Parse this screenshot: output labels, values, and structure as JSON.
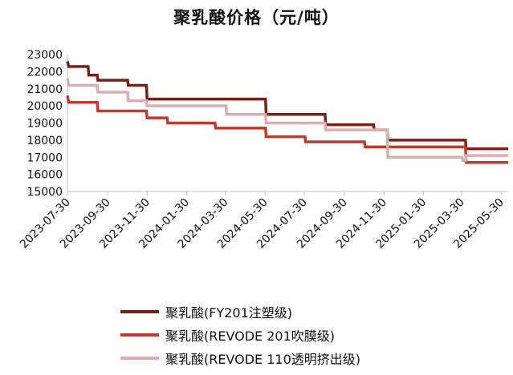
{
  "chart_data": {
    "type": "line",
    "title": "聚乳酸价格（元/吨）",
    "xlabel": "",
    "ylabel": "",
    "ylim": [
      15000,
      23000
    ],
    "yticks": [
      "23000",
      "22000",
      "21000",
      "20000",
      "19000",
      "18000",
      "17000",
      "16000",
      "15000"
    ],
    "xticks": [
      "2023-07-30",
      "2023-09-30",
      "2023-11-30",
      "2024-01-30",
      "2024-03-30",
      "2024-05-30",
      "2024-07-30",
      "2024-09-30",
      "2024-11-30",
      "2025-01-30",
      "2025-03-30",
      "2025-05-30"
    ],
    "xrange": [
      "2023-07-30",
      "2025-06-10"
    ],
    "grid": false,
    "legend_position": "bottom",
    "series": [
      {
        "name": "聚乳酸(FY201注塑级)",
        "color": "#7a1f16",
        "points": [
          [
            "2023-07-30",
            22600
          ],
          [
            "2023-08-01",
            22300
          ],
          [
            "2023-08-31",
            22300
          ],
          [
            "2023-09-01",
            21800
          ],
          [
            "2023-09-14",
            21800
          ],
          [
            "2023-09-15",
            21500
          ],
          [
            "2023-10-31",
            21500
          ],
          [
            "2023-11-01",
            21200
          ],
          [
            "2023-11-29",
            21200
          ],
          [
            "2023-11-30",
            20400
          ],
          [
            "2024-05-31",
            20400
          ],
          [
            "2024-06-01",
            19500
          ],
          [
            "2024-08-31",
            19500
          ],
          [
            "2024-09-01",
            18900
          ],
          [
            "2024-11-14",
            18900
          ],
          [
            "2024-11-15",
            18600
          ],
          [
            "2024-12-05",
            18600
          ],
          [
            "2024-12-06",
            18000
          ],
          [
            "2025-04-05",
            18000
          ],
          [
            "2025-04-06",
            17500
          ],
          [
            "2025-06-10",
            17500
          ]
        ]
      },
      {
        "name": "聚乳酸(REVODE 201吹膜级)",
        "color": "#c0392b",
        "points": [
          [
            "2023-07-30",
            20600
          ],
          [
            "2023-08-01",
            20200
          ],
          [
            "2023-09-14",
            20200
          ],
          [
            "2023-09-15",
            19700
          ],
          [
            "2023-11-29",
            19700
          ],
          [
            "2023-11-30",
            19300
          ],
          [
            "2023-12-31",
            19300
          ],
          [
            "2024-01-01",
            19000
          ],
          [
            "2024-03-14",
            19000
          ],
          [
            "2024-03-15",
            18700
          ],
          [
            "2024-05-31",
            18700
          ],
          [
            "2024-06-01",
            18200
          ],
          [
            "2024-07-31",
            18200
          ],
          [
            "2024-08-01",
            17900
          ],
          [
            "2024-10-31",
            17900
          ],
          [
            "2024-11-01",
            17600
          ],
          [
            "2024-11-30",
            17600
          ],
          [
            "2024-12-01",
            17600
          ],
          [
            "2025-04-05",
            17600
          ],
          [
            "2025-04-06",
            16700
          ],
          [
            "2025-06-10",
            16700
          ]
        ]
      },
      {
        "name": "聚乳酸(REVODE 110透明挤出级)",
        "color": "#d9aeb1",
        "points": [
          [
            "2023-07-30",
            21600
          ],
          [
            "2023-08-01",
            21200
          ],
          [
            "2023-09-14",
            21200
          ],
          [
            "2023-09-15",
            20800
          ],
          [
            "2023-10-31",
            20800
          ],
          [
            "2023-11-01",
            20300
          ],
          [
            "2023-11-29",
            20300
          ],
          [
            "2023-11-30",
            20000
          ],
          [
            "2024-03-31",
            20000
          ],
          [
            "2024-04-01",
            19500
          ],
          [
            "2024-05-31",
            19500
          ],
          [
            "2024-06-01",
            19000
          ],
          [
            "2024-08-31",
            19000
          ],
          [
            "2024-09-01",
            18600
          ],
          [
            "2024-12-05",
            18600
          ],
          [
            "2024-12-06",
            17000
          ],
          [
            "2025-03-31",
            17000
          ],
          [
            "2025-04-01",
            16800
          ],
          [
            "2025-04-05",
            16800
          ],
          [
            "2025-04-06",
            17100
          ],
          [
            "2025-06-10",
            17100
          ]
        ]
      }
    ]
  }
}
